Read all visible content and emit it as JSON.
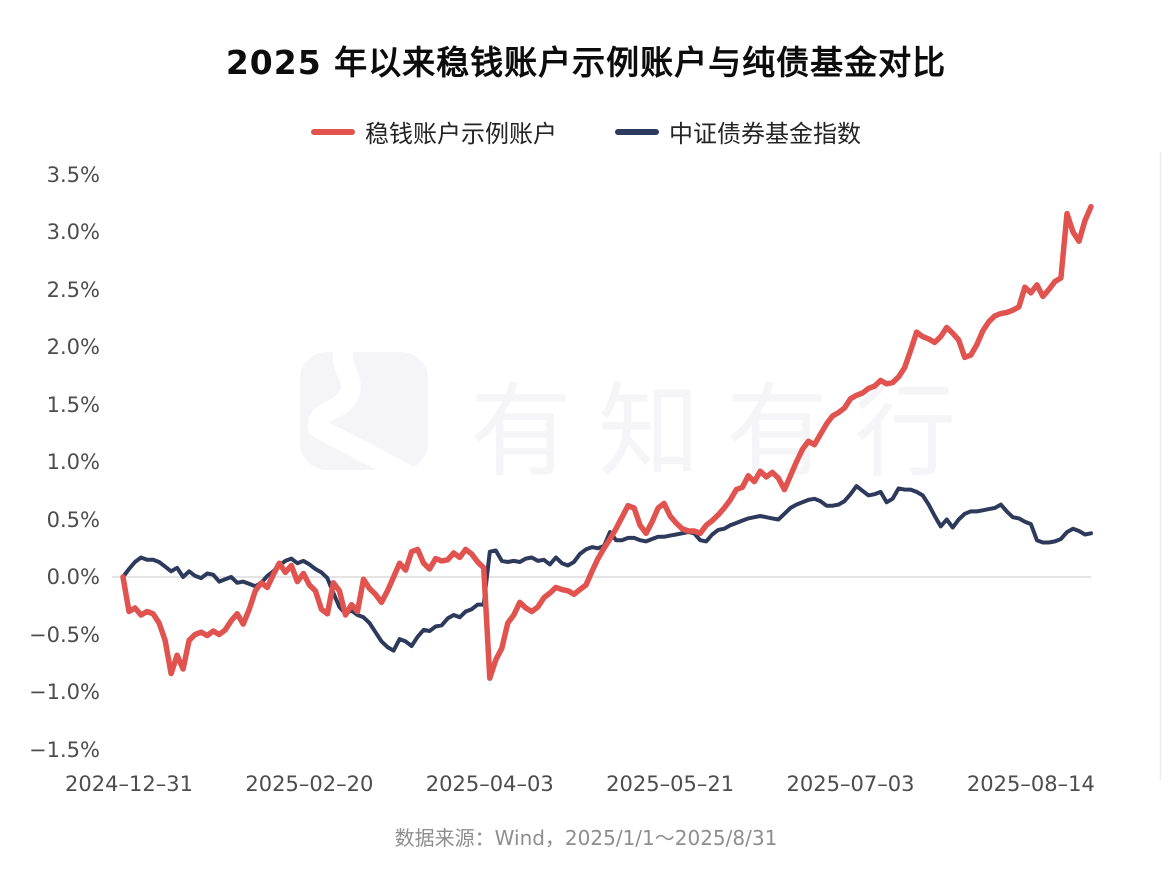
{
  "title": "2025 年以来稳钱账户示例账户与纯债基金对比",
  "legend": [
    {
      "label": "稳钱账户示例账户",
      "color": "#E0534F"
    },
    {
      "label": "中证债券基金指数",
      "color": "#2D3A5C"
    }
  ],
  "watermark": {
    "text": "有知有行",
    "logo": "youzhiyouxing-road-logo"
  },
  "footer": "数据来源：Wind，2025/1/1～2025/8/31",
  "colors": {
    "background": "#FFFFFF",
    "zero_line": "#DCDCDC",
    "right_border": "#EDEDED",
    "axis_text": "#4D4D4D",
    "title_text": "#0C0C0C",
    "footer_text": "#8E8E8E"
  },
  "chart_data": {
    "type": "line",
    "title": "2025 年以来稳钱账户示例账户与纯债基金对比",
    "x_unit": "trading days from 2024-12-31 to 2025-08-31",
    "n_points": 162,
    "x_tick_labels": [
      "2024–12–31",
      "2025–02–20",
      "2025–04–03",
      "2025–05–21",
      "2025–07–03",
      "2025–08–14"
    ],
    "x_tick_day_index": [
      1,
      31,
      61,
      91,
      121,
      151
    ],
    "y_tick_labels": [
      "3.5%",
      "3.0%",
      "2.5%",
      "2.0%",
      "1.5%",
      "1.0%",
      "0.5%",
      "0.0%",
      "−0.5%",
      "−1.0%",
      "−1.5%"
    ],
    "y_tick_values": [
      3.5,
      3.0,
      2.5,
      2.0,
      1.5,
      1.0,
      0.5,
      0.0,
      -0.5,
      -1.0,
      -1.5
    ],
    "ylim": [
      -1.5,
      3.5
    ],
    "unit": "percent cumulative return",
    "grid": "zero-line only",
    "legend_position": "top-center",
    "series": [
      {
        "name": "稳钱账户示例账户",
        "color": "#E0534F",
        "line_width": 5.5,
        "values": [
          0.0,
          -0.3,
          -0.27,
          -0.33,
          -0.3,
          -0.32,
          -0.4,
          -0.55,
          -0.84,
          -0.68,
          -0.8,
          -0.55,
          -0.5,
          -0.48,
          -0.51,
          -0.47,
          -0.5,
          -0.46,
          -0.38,
          -0.32,
          -0.41,
          -0.28,
          -0.12,
          -0.05,
          -0.09,
          0.02,
          0.12,
          0.04,
          0.1,
          -0.04,
          0.03,
          -0.07,
          -0.12,
          -0.28,
          -0.32,
          -0.05,
          -0.12,
          -0.33,
          -0.24,
          -0.3,
          -0.02,
          -0.1,
          -0.15,
          -0.22,
          -0.12,
          0.0,
          0.12,
          0.06,
          0.22,
          0.24,
          0.12,
          0.07,
          0.16,
          0.14,
          0.15,
          0.21,
          0.17,
          0.24,
          0.2,
          0.13,
          0.08,
          -0.88,
          -0.72,
          -0.62,
          -0.4,
          -0.33,
          -0.22,
          -0.27,
          -0.3,
          -0.26,
          -0.18,
          -0.14,
          -0.09,
          -0.11,
          -0.12,
          -0.15,
          -0.11,
          -0.07,
          0.05,
          0.16,
          0.25,
          0.33,
          0.42,
          0.52,
          0.62,
          0.6,
          0.45,
          0.38,
          0.48,
          0.6,
          0.64,
          0.53,
          0.47,
          0.42,
          0.4,
          0.4,
          0.38,
          0.45,
          0.49,
          0.54,
          0.6,
          0.67,
          0.76,
          0.78,
          0.88,
          0.83,
          0.92,
          0.87,
          0.91,
          0.86,
          0.76,
          0.88,
          1.0,
          1.11,
          1.18,
          1.15,
          1.24,
          1.33,
          1.4,
          1.43,
          1.47,
          1.55,
          1.58,
          1.6,
          1.64,
          1.66,
          1.71,
          1.68,
          1.69,
          1.74,
          1.82,
          1.97,
          2.13,
          2.09,
          2.07,
          2.04,
          2.09,
          2.17,
          2.12,
          2.06,
          1.91,
          1.93,
          2.02,
          2.14,
          2.22,
          2.27,
          2.29,
          2.3,
          2.32,
          2.35,
          2.52,
          2.47,
          2.54,
          2.44,
          2.5,
          2.57,
          2.6,
          3.16,
          3.0,
          2.92,
          3.1,
          3.22
        ]
      },
      {
        "name": "中证债券基金指数",
        "color": "#2D3A5C",
        "line_width": 4,
        "values": [
          0.0,
          0.07,
          0.13,
          0.17,
          0.15,
          0.15,
          0.13,
          0.09,
          0.05,
          0.08,
          0.0,
          0.05,
          0.01,
          -0.01,
          0.03,
          0.02,
          -0.04,
          -0.02,
          0.0,
          -0.05,
          -0.04,
          -0.06,
          -0.08,
          -0.05,
          0.01,
          0.05,
          0.1,
          0.14,
          0.16,
          0.12,
          0.14,
          0.11,
          0.07,
          0.04,
          -0.01,
          -0.14,
          -0.26,
          -0.32,
          -0.29,
          -0.33,
          -0.35,
          -0.4,
          -0.48,
          -0.56,
          -0.61,
          -0.64,
          -0.54,
          -0.56,
          -0.6,
          -0.52,
          -0.46,
          -0.47,
          -0.43,
          -0.42,
          -0.36,
          -0.33,
          -0.35,
          -0.3,
          -0.28,
          -0.24,
          -0.24,
          0.22,
          0.23,
          0.14,
          0.13,
          0.14,
          0.13,
          0.16,
          0.17,
          0.14,
          0.15,
          0.11,
          0.17,
          0.12,
          0.1,
          0.13,
          0.2,
          0.24,
          0.26,
          0.25,
          0.27,
          0.39,
          0.32,
          0.32,
          0.34,
          0.34,
          0.32,
          0.31,
          0.33,
          0.35,
          0.35,
          0.36,
          0.37,
          0.38,
          0.39,
          0.38,
          0.32,
          0.31,
          0.37,
          0.41,
          0.42,
          0.45,
          0.47,
          0.49,
          0.51,
          0.52,
          0.53,
          0.52,
          0.51,
          0.5,
          0.55,
          0.6,
          0.63,
          0.65,
          0.67,
          0.68,
          0.66,
          0.62,
          0.62,
          0.63,
          0.66,
          0.72,
          0.79,
          0.75,
          0.71,
          0.72,
          0.74,
          0.65,
          0.68,
          0.77,
          0.76,
          0.76,
          0.74,
          0.71,
          0.63,
          0.53,
          0.44,
          0.5,
          0.43,
          0.5,
          0.55,
          0.57,
          0.57,
          0.58,
          0.59,
          0.6,
          0.63,
          0.57,
          0.52,
          0.51,
          0.48,
          0.46,
          0.32,
          0.3,
          0.3,
          0.31,
          0.33,
          0.39,
          0.42,
          0.4,
          0.37,
          0.38
        ]
      }
    ]
  }
}
